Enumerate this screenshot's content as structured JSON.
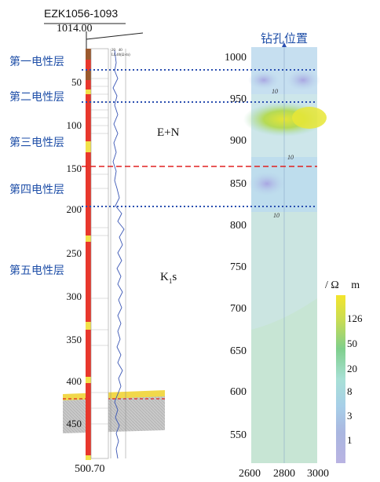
{
  "borehole": {
    "id": "EZK1056-1093",
    "elevation": "1014.00",
    "bottom_depth": "500.70"
  },
  "layers": [
    "第一电性层",
    "第二电性层",
    "第三电性层",
    "第四电性层",
    "第五电性层"
  ],
  "units": [
    "E+N",
    "K",
    "1",
    "s"
  ],
  "depth_ticks": [
    "50",
    "100",
    "150",
    "200",
    "250",
    "300",
    "350",
    "400",
    "450"
  ],
  "log_header": [
    "20",
    "40",
    "LL40(Ω·m)"
  ],
  "section": {
    "title": "钻孔位置",
    "elev_ticks": [
      "1000",
      "950",
      "900",
      "850",
      "800",
      "750",
      "700",
      "650",
      "600",
      "550"
    ],
    "x_ticks": [
      "2600",
      "2800",
      "3000"
    ],
    "contour_labels": [
      "10",
      "10",
      "10"
    ]
  },
  "legend": {
    "unit_prefix": "/",
    "unit_omega": "Ω",
    "unit_m": "m",
    "ticks": [
      "126",
      "50",
      "20",
      "8",
      "3",
      "1"
    ]
  },
  "colors": {
    "dotted_line": "#2a4fb0",
    "dashed_line": "#e02020",
    "layer_text": "#1f4fa8",
    "sandstone": "#e8372c",
    "conglomerate": "#f2e24a"
  }
}
